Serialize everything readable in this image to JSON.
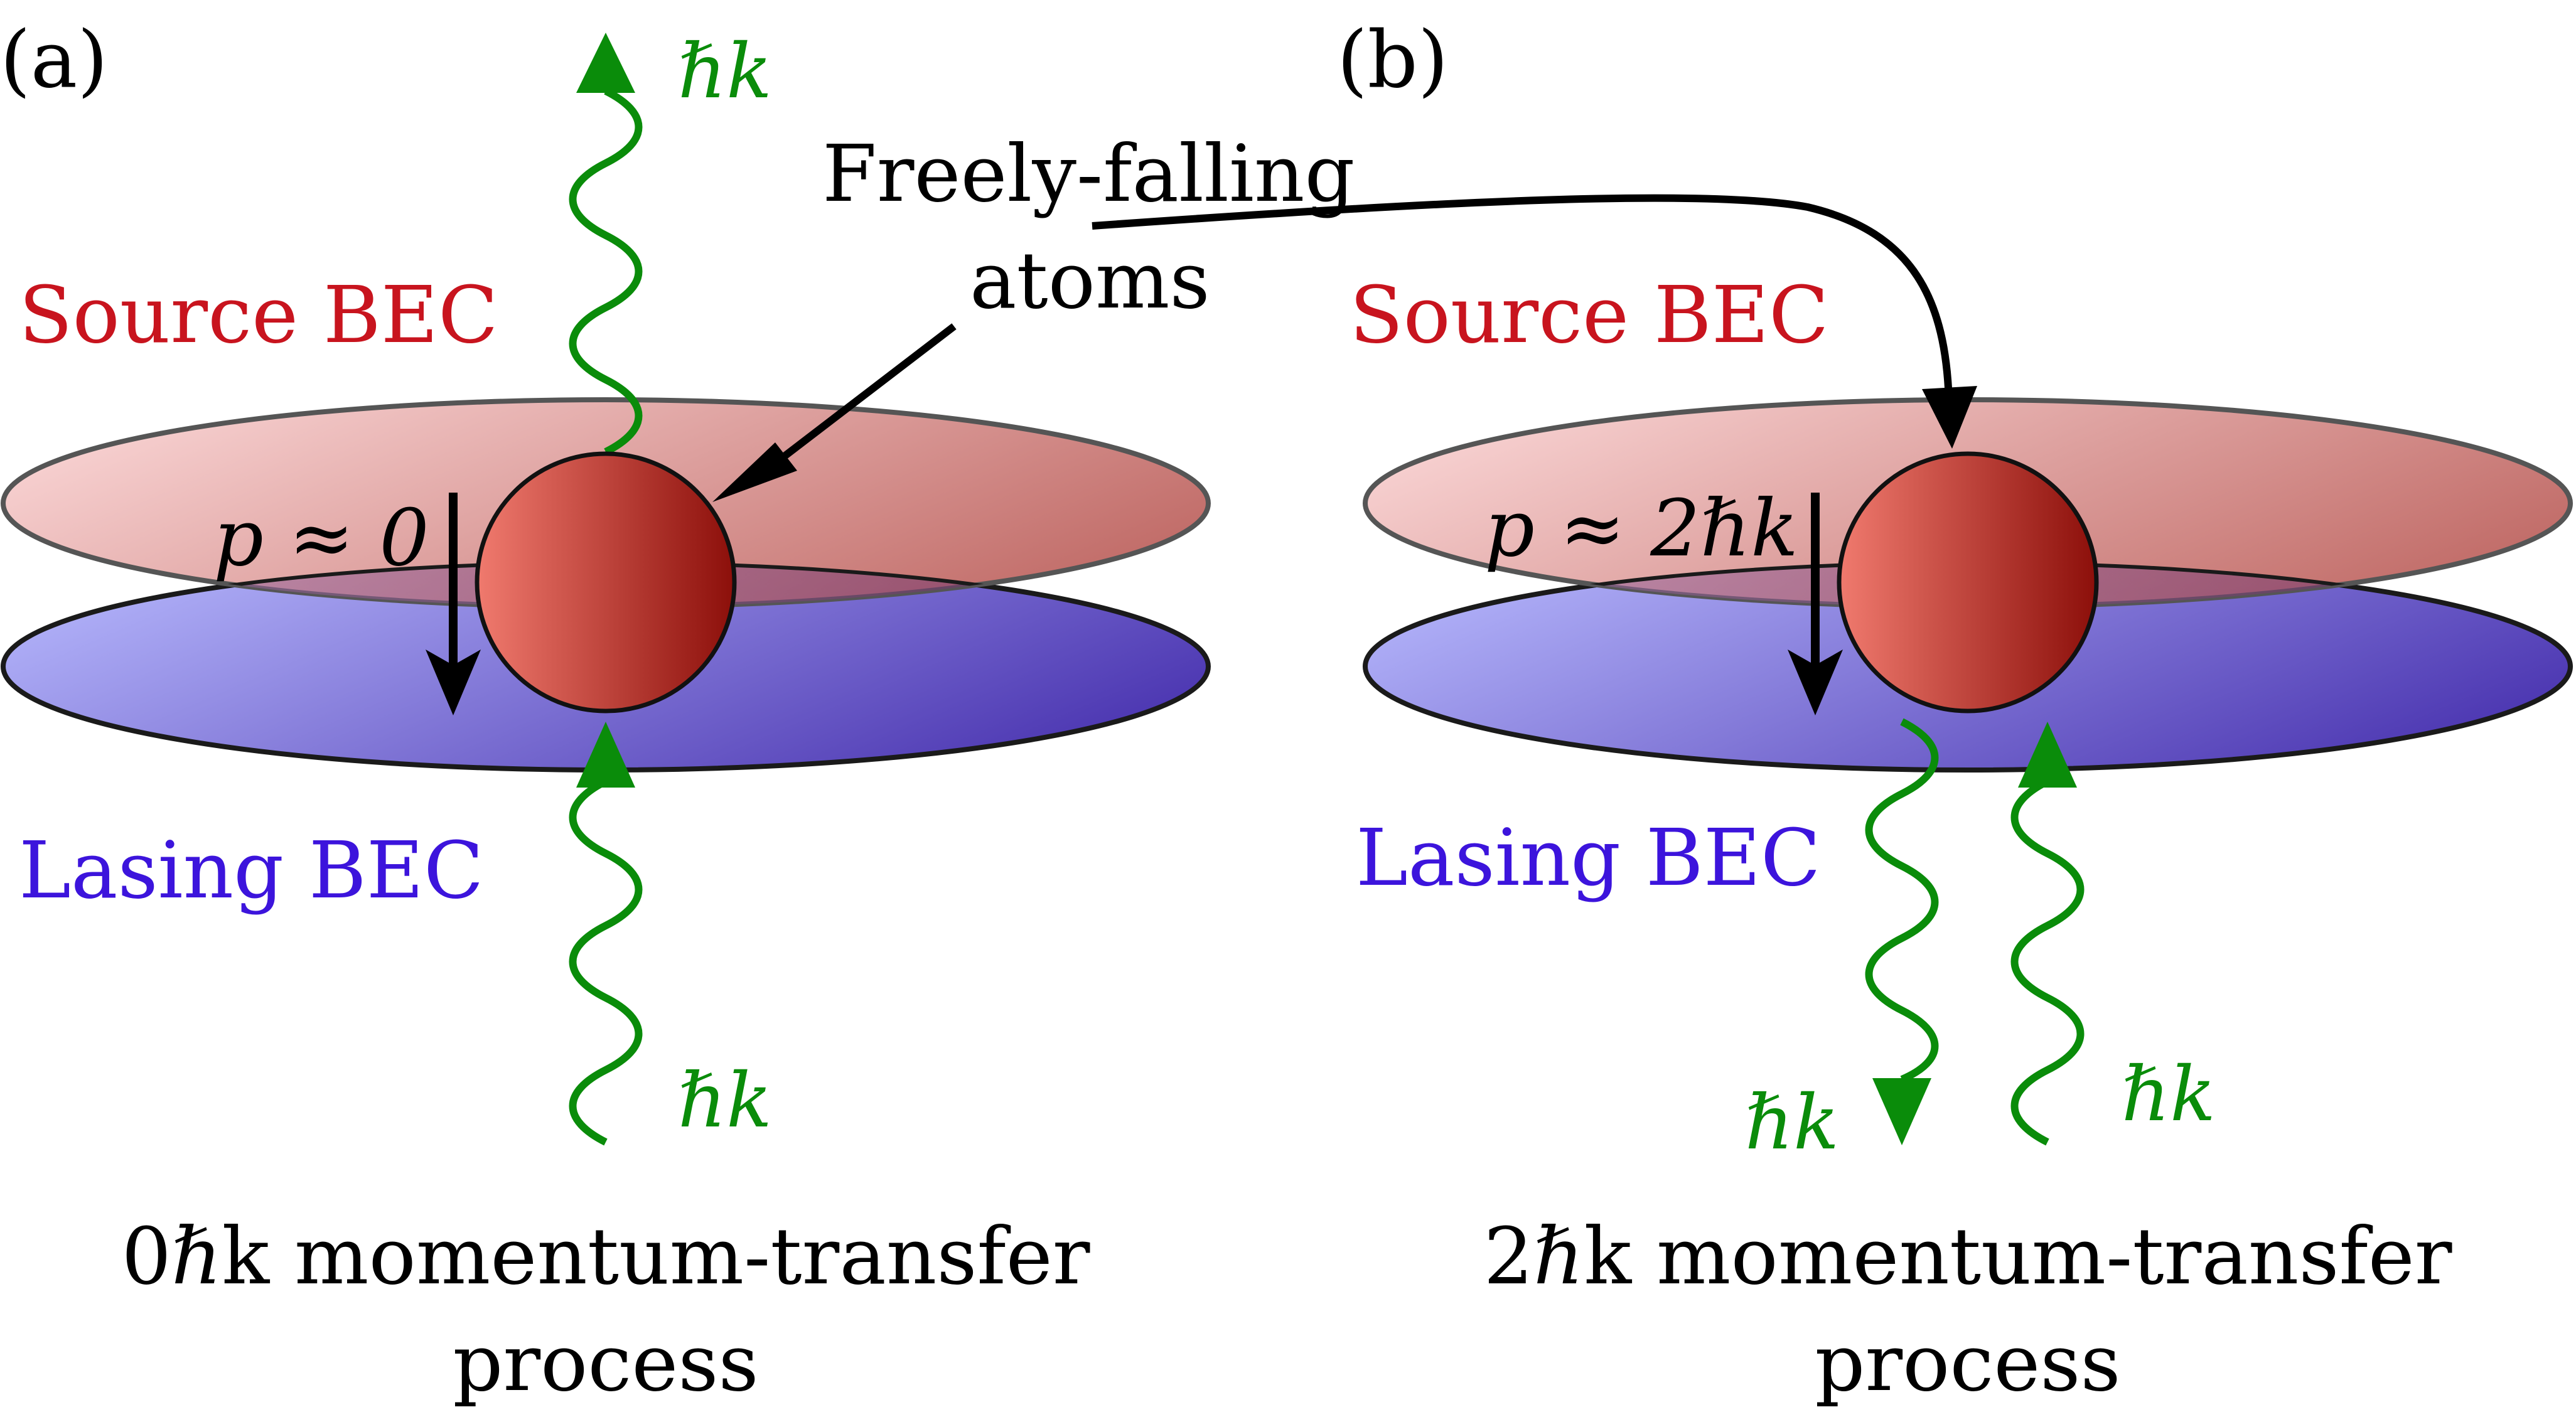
{
  "panels": [
    {
      "tag": "(a)",
      "source_label": "Source BEC",
      "lasing_label": "Lasing BEC",
      "momentum_label": "p ≈ 0",
      "photon_top_label": "ℏk",
      "photon_bottom_label": "ℏk",
      "caption_line1": "0ℏk momentum-transfer",
      "caption_line2": "process"
    },
    {
      "tag": "(b)",
      "source_label": "Source BEC",
      "lasing_label": "Lasing BEC",
      "momentum_label": "p ≈ 2ℏk",
      "photon_left_label": "ℏk",
      "photon_right_label": "ℏk",
      "caption_line1": "2ℏk momentum-transfer",
      "caption_line2": "process"
    }
  ],
  "callout": {
    "line1": "Freely-falling",
    "line2": "atoms"
  },
  "colors": {
    "source_bec": "#c8141e",
    "lasing_bec": "#3c14dc",
    "photon": "#0a8c0a",
    "atom_light": "#f07a6e",
    "atom_dark": "#8c0f0a",
    "arrow": "#000000"
  }
}
